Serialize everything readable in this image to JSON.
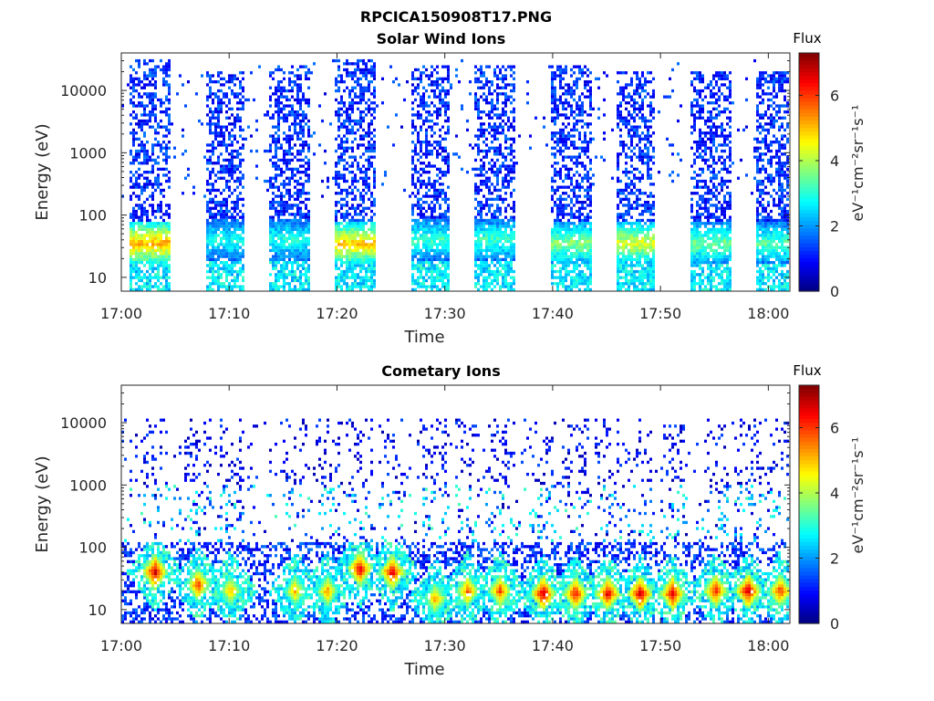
{
  "figure_title": "RPCICA150908T17.PNG",
  "chart_data": [
    {
      "type": "heatmap",
      "title": "Solar Wind Ions",
      "xlabel": "Time",
      "ylabel": "Energy (eV)",
      "y_scale": "log",
      "xlim": [
        "17:00",
        "18:02"
      ],
      "ylim": [
        6,
        40000
      ],
      "x_ticks": [
        "17:00",
        "17:10",
        "17:20",
        "17:30",
        "17:40",
        "17:50",
        "18:00"
      ],
      "y_ticks": [
        "10",
        "100",
        "1000",
        "10000"
      ],
      "colorbar": {
        "title": "Flux",
        "label": "eV⁻¹cm⁻²sr⁻¹s⁻¹",
        "ticks": [
          "0",
          "2",
          "4",
          "6"
        ],
        "range": [
          0,
          7.3
        ],
        "colormap": "jet"
      },
      "bursts": [
        {
          "start": "17:01",
          "end": "17:04",
          "emax": 30000,
          "hot_energy": 35,
          "hot_level": 4.8
        },
        {
          "start": "17:08",
          "end": "17:11",
          "emax": 20000,
          "hot_energy": 40,
          "hot_level": 2.5
        },
        {
          "start": "17:14",
          "end": "17:17",
          "emax": 25000,
          "hot_energy": 40,
          "hot_level": 2.6
        },
        {
          "start": "17:20",
          "end": "17:23",
          "emax": 30000,
          "hot_energy": 35,
          "hot_level": 4.6
        },
        {
          "start": "17:27",
          "end": "17:30",
          "emax": 25000,
          "hot_energy": 40,
          "hot_level": 2.8
        },
        {
          "start": "17:33",
          "end": "17:36",
          "emax": 25000,
          "hot_energy": 40,
          "hot_level": 2.8
        },
        {
          "start": "17:40",
          "end": "17:43",
          "emax": 25000,
          "hot_energy": 35,
          "hot_level": 3.4
        },
        {
          "start": "17:46",
          "end": "17:49",
          "emax": 20000,
          "hot_energy": 35,
          "hot_level": 4.0
        },
        {
          "start": "17:53",
          "end": "17:56",
          "emax": 20000,
          "hot_energy": 35,
          "hot_level": 3.2
        },
        {
          "start": "17:59",
          "end": "18:02",
          "emax": 20000,
          "hot_energy": 35,
          "hot_level": 3.0
        }
      ]
    },
    {
      "type": "heatmap",
      "title": "Cometary Ions",
      "xlabel": "Time",
      "ylabel": "Energy (eV)",
      "y_scale": "log",
      "xlim": [
        "17:00",
        "18:02"
      ],
      "ylim": [
        6,
        40000
      ],
      "x_ticks": [
        "17:00",
        "17:10",
        "17:20",
        "17:30",
        "17:40",
        "17:50",
        "18:00"
      ],
      "y_ticks": [
        "10",
        "100",
        "1000",
        "10000"
      ],
      "colorbar": {
        "title": "Flux",
        "label": "eV⁻¹cm⁻²sr⁻¹s⁻¹",
        "ticks": [
          "0",
          "2",
          "4",
          "6"
        ],
        "range": [
          0,
          7.3
        ],
        "colormap": "jet"
      },
      "blobs": [
        {
          "time": "17:03",
          "energy": 40,
          "level": 6.8
        },
        {
          "time": "17:07",
          "energy": 25,
          "level": 6.0
        },
        {
          "time": "17:10",
          "energy": 20,
          "level": 5.0
        },
        {
          "time": "17:16",
          "energy": 20,
          "level": 5.0
        },
        {
          "time": "17:19",
          "energy": 20,
          "level": 5.2
        },
        {
          "time": "17:22",
          "energy": 45,
          "level": 6.6
        },
        {
          "time": "17:25",
          "energy": 40,
          "level": 6.6
        },
        {
          "time": "17:29",
          "energy": 15,
          "level": 5.2
        },
        {
          "time": "17:32",
          "energy": 20,
          "level": 5.6
        },
        {
          "time": "17:35",
          "energy": 20,
          "level": 5.8
        },
        {
          "time": "17:39",
          "energy": 18,
          "level": 6.8
        },
        {
          "time": "17:42",
          "energy": 18,
          "level": 6.4
        },
        {
          "time": "17:45",
          "energy": 18,
          "level": 6.6
        },
        {
          "time": "17:48",
          "energy": 18,
          "level": 6.8
        },
        {
          "time": "17:51",
          "energy": 18,
          "level": 6.6
        },
        {
          "time": "17:55",
          "energy": 20,
          "level": 6.2
        },
        {
          "time": "17:58",
          "energy": 20,
          "level": 6.8
        },
        {
          "time": "18:01",
          "energy": 20,
          "level": 6.0
        }
      ]
    }
  ]
}
